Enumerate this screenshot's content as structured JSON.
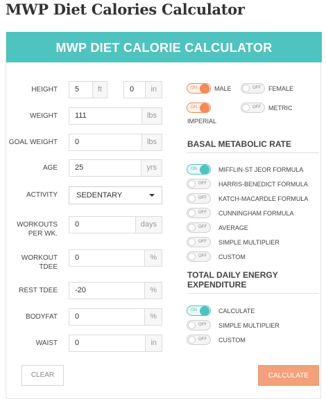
{
  "page_title": "MWP Diet Calories Calculator",
  "calculator": {
    "header": "MWP DIET CALORIE CALCULATOR",
    "accent_color": "#4fc3bf",
    "action_color": "#f48a55"
  },
  "fields": {
    "height": {
      "label": "HEIGHT",
      "feet": "5",
      "feet_unit": "ft",
      "inches": "0",
      "inches_unit": "in"
    },
    "weight": {
      "label": "WEIGHT",
      "value": "111",
      "unit": "lbs"
    },
    "goal_weight": {
      "label": "GOAL WEIGHT",
      "value": "0",
      "unit": "lbs"
    },
    "age": {
      "label": "AGE",
      "value": "25",
      "unit": "yrs"
    },
    "activity": {
      "label": "ACTIVITY",
      "selected": "SEDENTARY"
    },
    "workouts": {
      "label_line1": "WORKOUTS",
      "label_line2": "PER WK.",
      "value": "0",
      "unit": "days"
    },
    "workout_tdee": {
      "label_line1": "WORKOUT",
      "label_line2": "TDEE",
      "value": "0",
      "unit": "%"
    },
    "rest_tdee": {
      "label": "REST TDEE",
      "value": "-20",
      "unit": "%"
    },
    "bodyfat": {
      "label": "BODYFAT",
      "value": "0",
      "unit": "%"
    },
    "waist": {
      "label": "WAIST",
      "value": "0",
      "unit": "in"
    }
  },
  "toggles": {
    "on_text": "ON",
    "off_text": "OFF",
    "male": "MALE",
    "female": "FEMALE",
    "imperial": "IMPERIAL",
    "metric": "METRIC"
  },
  "bmr": {
    "heading": "BASAL METABOLIC RATE",
    "options": [
      {
        "label": "MIFFLIN-ST JEOR FORMULA",
        "on": true
      },
      {
        "label": "HARRIS-BENEDICT FORMULA",
        "on": false
      },
      {
        "label": "KATCH-MACARDLE FORMULA",
        "on": false
      },
      {
        "label": "CUNNINGHAM FORMULA",
        "on": false
      },
      {
        "label": "AVERAGE",
        "on": false
      },
      {
        "label": "SIMPLE MULTIPLIER",
        "on": false
      },
      {
        "label": "CUSTOM",
        "on": false
      }
    ]
  },
  "tdee": {
    "heading_line1": "TOTAL DAILY ENERGY",
    "heading_line2": "EXPENDITURE",
    "options": [
      {
        "label": "CALCULATE",
        "on": true
      },
      {
        "label": "SIMPLE MULTIPLIER",
        "on": false
      },
      {
        "label": "CUSTOM",
        "on": false
      }
    ]
  },
  "buttons": {
    "clear": "CLEAR",
    "calculate": "CALCULATE"
  }
}
